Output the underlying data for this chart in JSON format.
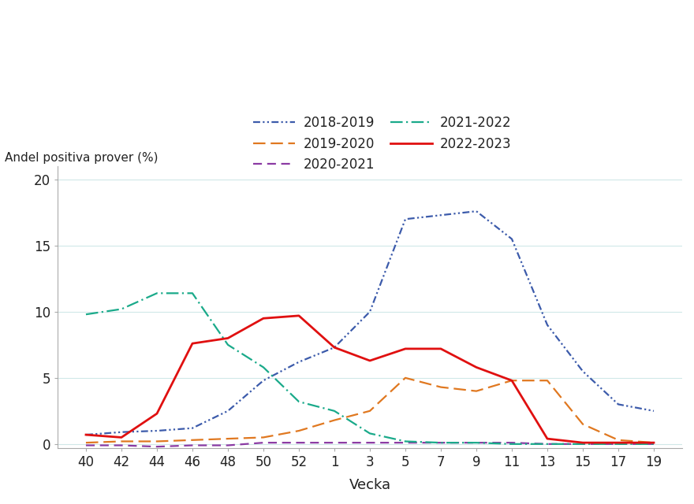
{
  "title": "Andel positiva prover (%)",
  "xlabel": "Vecka",
  "ylabel": "Andel positiva prover (%)",
  "x_labels": [
    "40",
    "42",
    "44",
    "46",
    "48",
    "50",
    "52",
    "1",
    "3",
    "5",
    "7",
    "9",
    "11",
    "13",
    "15",
    "17",
    "19"
  ],
  "ylim": [
    -0.3,
    21
  ],
  "yticks": [
    0,
    5,
    10,
    15,
    20
  ],
  "series": {
    "2018-2019": {
      "color": "#3c5bab",
      "linewidth": 1.6,
      "values": [
        0.7,
        0.9,
        1.0,
        1.2,
        2.5,
        4.8,
        6.2,
        7.3,
        10.0,
        17.0,
        17.3,
        17.6,
        15.5,
        9.0,
        5.5,
        3.0,
        2.5
      ]
    },
    "2019-2020": {
      "color": "#e07820",
      "linewidth": 1.6,
      "values": [
        0.1,
        0.2,
        0.2,
        0.3,
        0.4,
        0.5,
        1.0,
        1.8,
        2.5,
        5.0,
        4.3,
        4.0,
        4.8,
        4.8,
        1.5,
        0.3,
        0.1
      ]
    },
    "2020-2021": {
      "color": "#8b3aa3",
      "linewidth": 1.6,
      "values": [
        -0.1,
        -0.1,
        -0.2,
        -0.1,
        -0.1,
        0.1,
        0.1,
        0.1,
        0.1,
        0.1,
        0.1,
        0.1,
        0.1,
        0.0,
        0.0,
        0.0,
        0.0
      ]
    },
    "2021-2022": {
      "color": "#1aaa8a",
      "linewidth": 1.6,
      "values": [
        9.8,
        10.2,
        11.4,
        11.4,
        7.5,
        5.8,
        3.2,
        2.5,
        0.8,
        0.2,
        0.1,
        0.1,
        0.0,
        0.0,
        0.0,
        0.0,
        0.0
      ]
    },
    "2022-2023": {
      "color": "#e01010",
      "linewidth": 2.0,
      "values": [
        0.7,
        0.5,
        2.3,
        7.6,
        8.0,
        9.5,
        9.7,
        7.3,
        6.3,
        7.2,
        7.2,
        5.8,
        4.8,
        0.4,
        0.1,
        0.1,
        0.1
      ]
    }
  },
  "legend_order": [
    "2018-2019",
    "2019-2020",
    "2020-2021",
    "2021-2022",
    "2022-2023"
  ],
  "background_color": "#ffffff",
  "grid_color": "#d0e8e8",
  "text_color": "#222222",
  "font_size": 12
}
